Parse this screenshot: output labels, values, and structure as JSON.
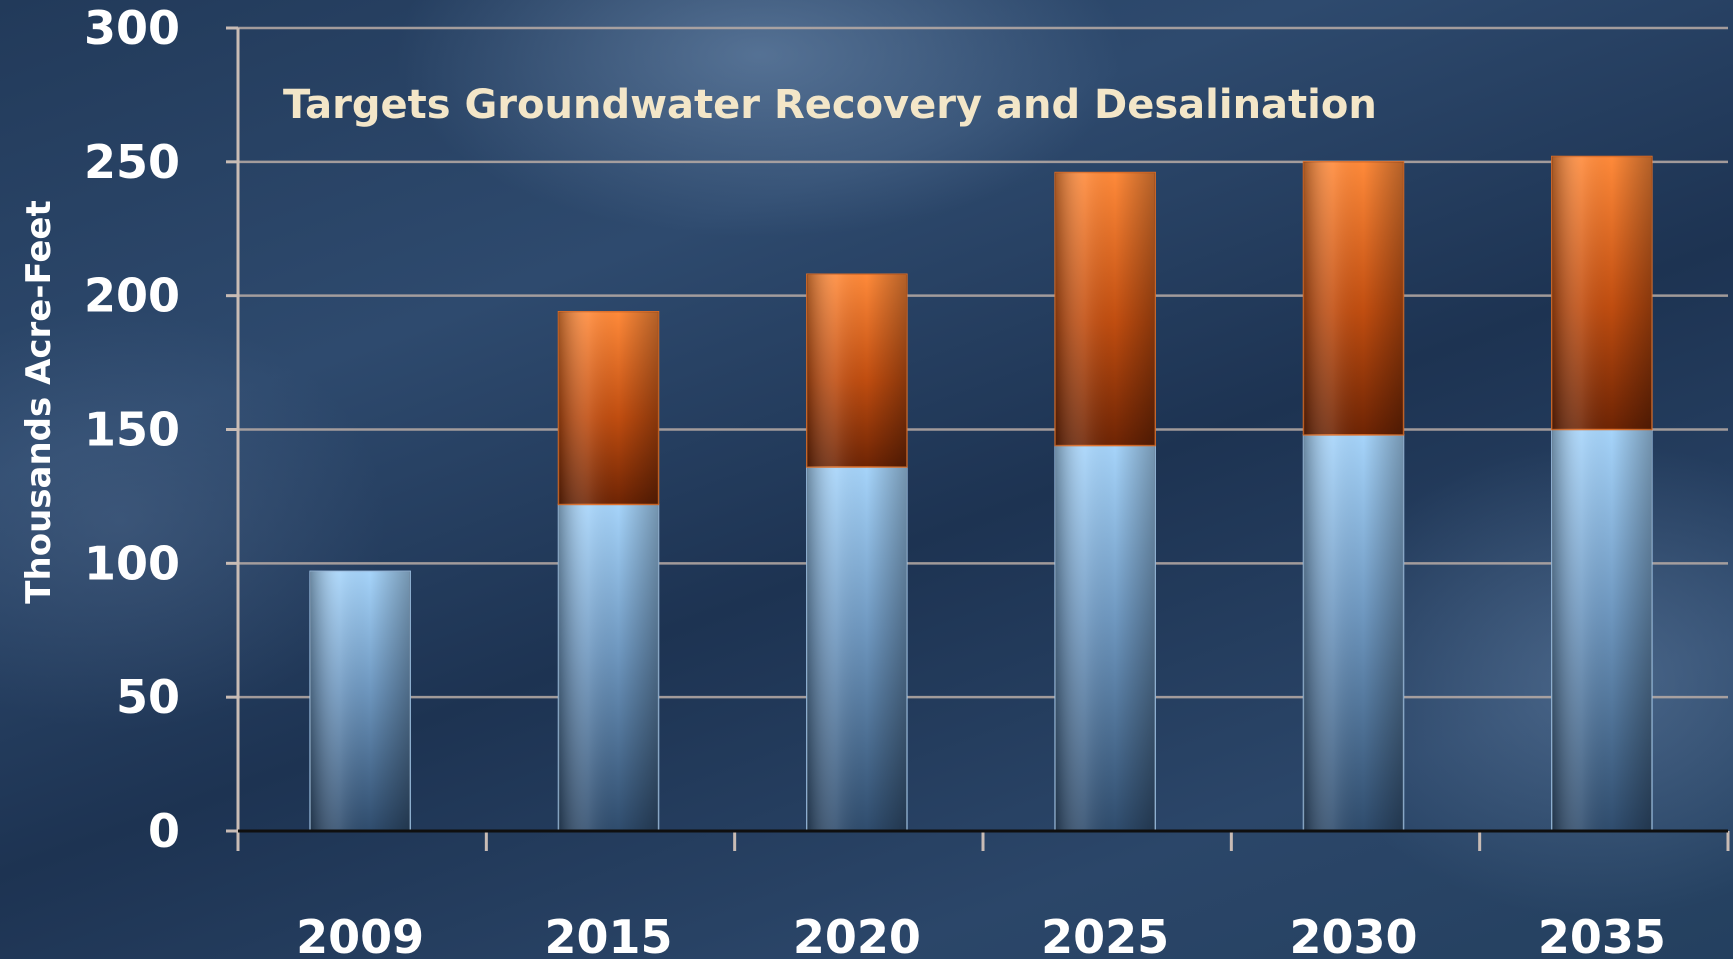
{
  "chart_data": {
    "type": "bar",
    "stacked": true,
    "title": "Targets Groundwater Recovery and Desalination",
    "xlabel": "",
    "ylabel": "Thousands Acre-Feet",
    "categories": [
      "2009",
      "2015",
      "2020",
      "2025",
      "2030",
      "2035"
    ],
    "series": [
      {
        "values": [
          97,
          122,
          136,
          144,
          148,
          150
        ],
        "color": "#8fb8de"
      },
      {
        "values": [
          0,
          72,
          72,
          102,
          102,
          102
        ],
        "color": "#d9601a"
      }
    ],
    "ylim": [
      0,
      300
    ],
    "yticks": [
      0,
      50,
      100,
      150,
      200,
      250,
      300
    ],
    "grid": true,
    "legend": "none"
  }
}
